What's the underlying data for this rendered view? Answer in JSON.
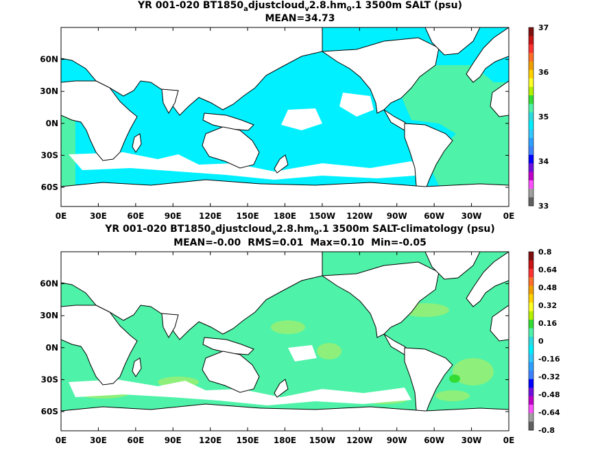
{
  "chart_data": [
    {
      "type": "heatmap",
      "title_parts": [
        "YR 001-020 BT1850",
        "a",
        "djustcloud",
        "v",
        "2.8.hm",
        "0",
        ".1 3500m SALT (psu)"
      ],
      "stats": [
        "MEAN=34.73"
      ],
      "xticks": [
        "0E",
        "30E",
        "60E",
        "90E",
        "120E",
        "150E",
        "180E",
        "150W",
        "120W",
        "90W",
        "60W",
        "30W",
        "0E"
      ],
      "yticks": [
        "60N",
        "30N",
        "0N",
        "30S",
        "60S"
      ],
      "colorbar": {
        "ticks": [
          "37",
          "36",
          "35",
          "34",
          "33"
        ],
        "colors": [
          "#7f1010",
          "#c81414",
          "#ff3232",
          "#ff6e28",
          "#f0a000",
          "#ffd200",
          "#ffff28",
          "#b4f000",
          "#32dc32",
          "#4ef2a8",
          "#2cdce0",
          "#00f0ff",
          "#30c8ff",
          "#2da0ff",
          "#3c82ff",
          "#0000ff",
          "#7010e0",
          "#c000c8",
          "#ff50ff",
          "#a0a0a0",
          "#606060"
        ]
      },
      "field": {
        "dominant_value": "35",
        "dominant_color": "#00f0ff",
        "atlantic_color": "#4ef2a8"
      }
    },
    {
      "type": "heatmap",
      "title_parts": [
        "YR 001-020 BT1850",
        "a",
        "djustcloud",
        "v",
        "2.8.hm",
        "0",
        ".1 3500m SALT-climatology (psu)"
      ],
      "stats": [
        "MEAN=-0.00",
        "RMS=0.01",
        "Max=0.10",
        "Min=-0.05"
      ],
      "xticks": [
        "0E",
        "30E",
        "60E",
        "90E",
        "120E",
        "150E",
        "180E",
        "150W",
        "120W",
        "90W",
        "60W",
        "30W",
        "0E"
      ],
      "yticks": [
        "60N",
        "30N",
        "0N",
        "30S",
        "60S"
      ],
      "colorbar": {
        "ticks": [
          "0.8",
          "0.64",
          "0.48",
          "0.32",
          "0.16",
          "0",
          "-0.16",
          "-0.32",
          "-0.48",
          "-0.64",
          "-0.8"
        ],
        "colors": [
          "#7f1010",
          "#c81414",
          "#ff3232",
          "#ff6e28",
          "#f0a000",
          "#ffd200",
          "#ffff28",
          "#b4f000",
          "#32dc32",
          "#4ef2a8",
          "#2cdce0",
          "#00f0ff",
          "#30c8ff",
          "#2da0ff",
          "#3c82ff",
          "#0000ff",
          "#7010e0",
          "#c000c8",
          "#ff50ff",
          "#a0a0a0",
          "#606060"
        ]
      },
      "field": {
        "dominant_value": "0",
        "dominant_color": "#4ef2a8",
        "patch_color": "#8ef07a",
        "strong_patch_color": "#32dc32"
      }
    }
  ]
}
